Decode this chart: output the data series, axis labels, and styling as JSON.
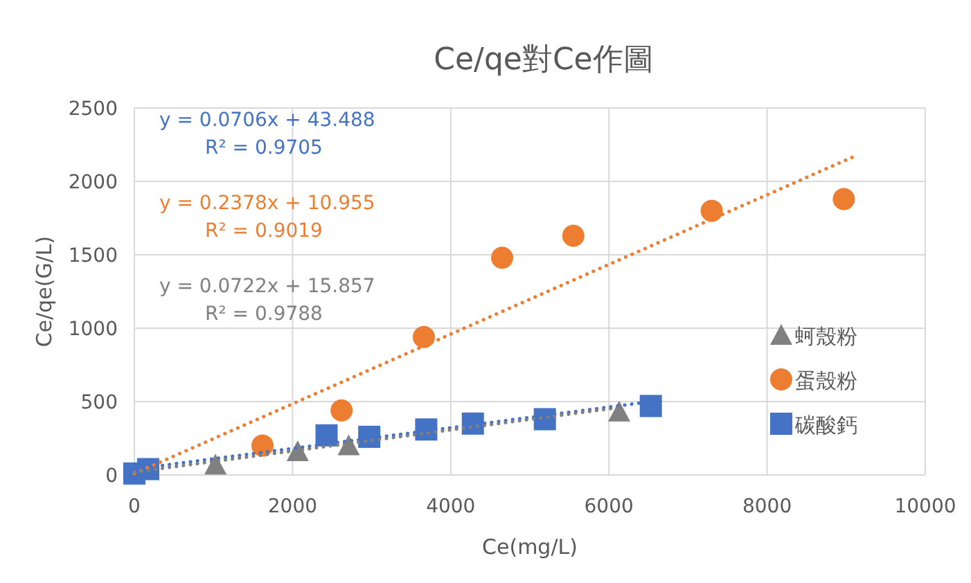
{
  "chart_data": {
    "type": "scatter",
    "title": "Ce/qe對Ce作圖",
    "xlabel": "Ce(mg/L)",
    "ylabel": "Ce/qe(G/L)",
    "xlim": [
      0,
      10000
    ],
    "xticks": [
      0,
      2000,
      4000,
      6000,
      8000,
      10000
    ],
    "ylim": [
      0,
      2500
    ],
    "yticks": [
      0,
      500,
      1000,
      1500,
      2000,
      2500
    ],
    "grid": true,
    "legend": "right",
    "series": [
      {
        "name": "蚵殼粉",
        "marker": "triangle",
        "color": "#808080",
        "x": [
          1025,
          2065,
          2710,
          6130
        ],
        "values": [
          70,
          160,
          200,
          430
        ]
      },
      {
        "name": "蛋殼粉",
        "marker": "circle",
        "color": "#ed7d31",
        "x": [
          1620,
          2620,
          3660,
          4650,
          5550,
          7300,
          8970
        ],
        "values": [
          200,
          440,
          940,
          1480,
          1630,
          1800,
          1880
        ]
      },
      {
        "name": "碳酸鈣",
        "marker": "square",
        "color": "#4472c4",
        "x": [
          0,
          175,
          2430,
          2970,
          3690,
          4280,
          5190,
          6530
        ],
        "values": [
          10,
          40,
          270,
          260,
          310,
          350,
          380,
          470
        ]
      },
      {
        "type": "line",
        "line_style": "dotted",
        "marker": "none",
        "color": "#4472c4",
        "x": [
          0,
          6530
        ],
        "values": [
          40,
          500
        ]
      },
      {
        "type": "line",
        "line_style": "dotted",
        "marker": "none",
        "color": "#ed7d31",
        "x": [
          0,
          9100
        ],
        "values": [
          10,
          2170
        ]
      },
      {
        "type": "line",
        "line_style": "dotted",
        "marker": "none",
        "color": "#808080",
        "x": [
          0,
          6130
        ],
        "values": [
          20,
          460
        ]
      }
    ],
    "annotations": [
      "y = 0.0706x + 43.488",
      "R² = 0.9705",
      "y = 0.2378x + 10.955",
      "R² = 0.9019",
      "y = 0.0722x + 15.857",
      "R² = 0.9788"
    ]
  }
}
